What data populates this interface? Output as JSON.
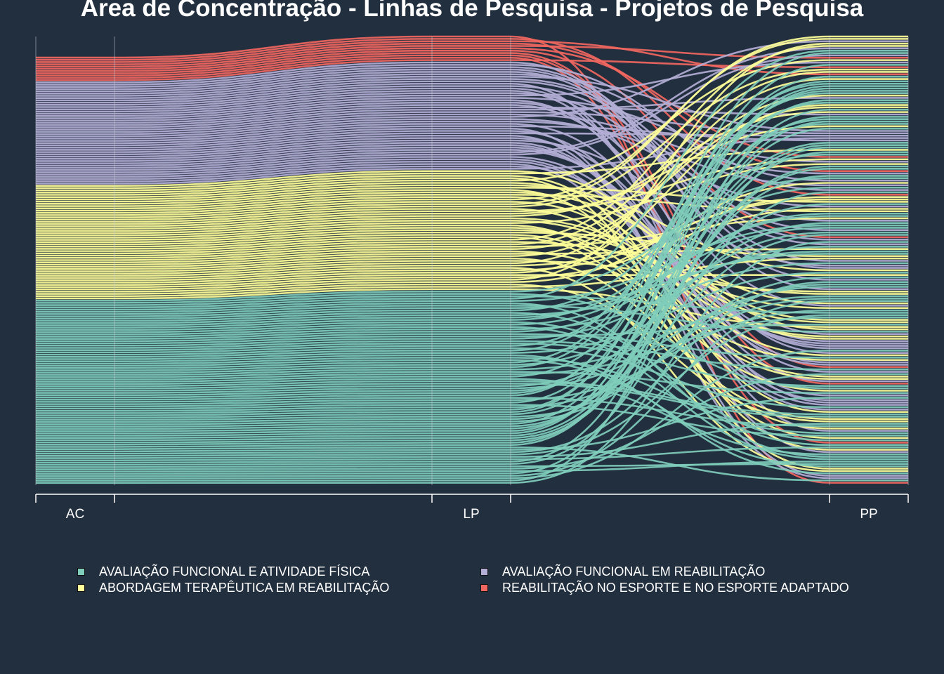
{
  "chart_data": {
    "type": "alluvial",
    "title": "Área de Concentração - Linhas de Pesquisa - Projetos de Pesquisa",
    "axes": [
      "AC",
      "LP",
      "PP"
    ],
    "series": [
      {
        "name": "AVALIAÇÃO FUNCIONAL E ATIVIDADE FÍSICA",
        "color": "#7fcdbb",
        "count": 82
      },
      {
        "name": "ABORDAGEM TERAPÊUTICA EM REABILITAÇÃO",
        "color": "#ffff99",
        "count": 51
      },
      {
        "name": "AVALIAÇÃO FUNCIONAL EM REABILITAÇÃO",
        "color": "#b3aed5",
        "count": 46
      },
      {
        "name": "REABILITAÇÃO NO ESPORTE E NO ESPORTE ADAPTADO",
        "color": "#f2675f",
        "count": 11
      }
    ],
    "legend_order": [
      0,
      2,
      1,
      3
    ],
    "legend_position": "bottom",
    "grid": false
  }
}
